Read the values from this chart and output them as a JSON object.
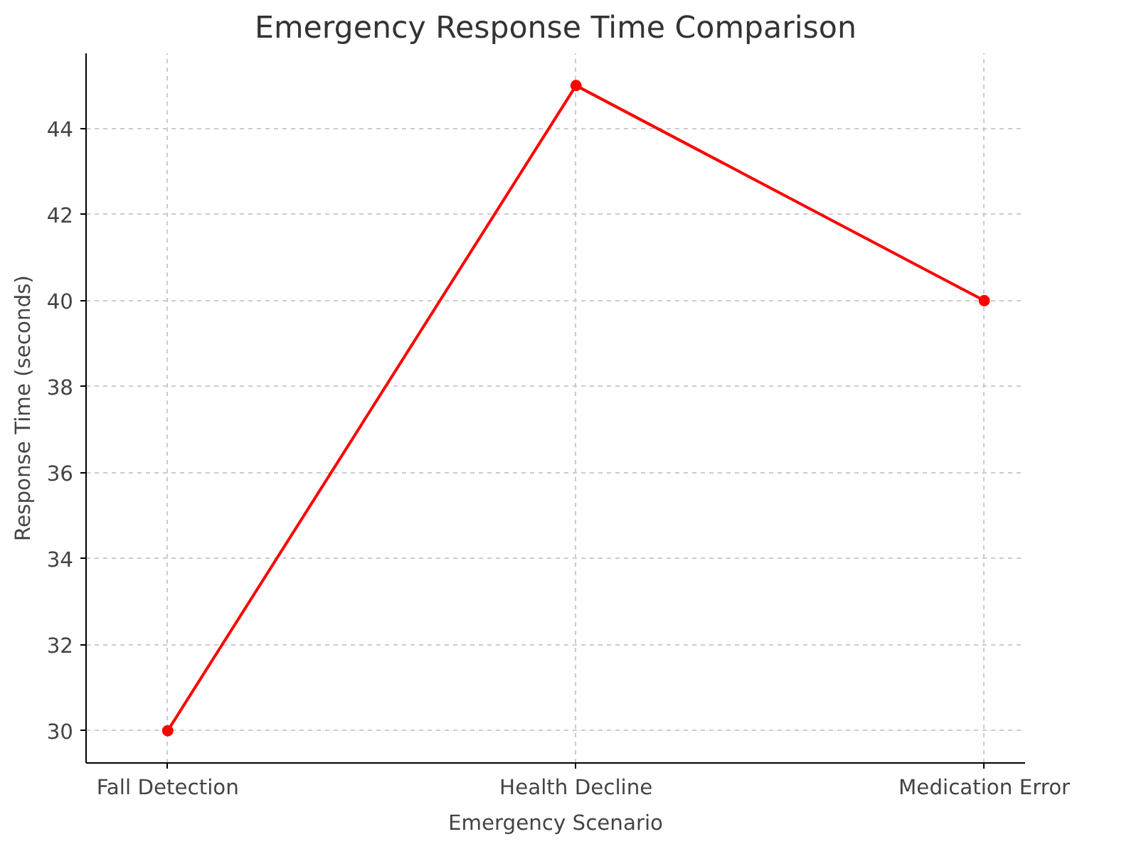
{
  "chart_data": {
    "type": "line",
    "title": "Emergency Response Time Comparison",
    "xlabel": "Emergency Scenario",
    "ylabel": "Response Time (seconds)",
    "categories": [
      "Fall Detection",
      "Health Decline",
      "Medication Error"
    ],
    "series": [
      {
        "color": "#ff0000",
        "values": [
          30,
          45,
          40
        ]
      }
    ],
    "ylim": [
      29.25,
      45.75
    ],
    "yticks": [
      30,
      32,
      34,
      36,
      38,
      40,
      42,
      44
    ],
    "grid": true,
    "marker": "circle",
    "line_style": "solid"
  }
}
